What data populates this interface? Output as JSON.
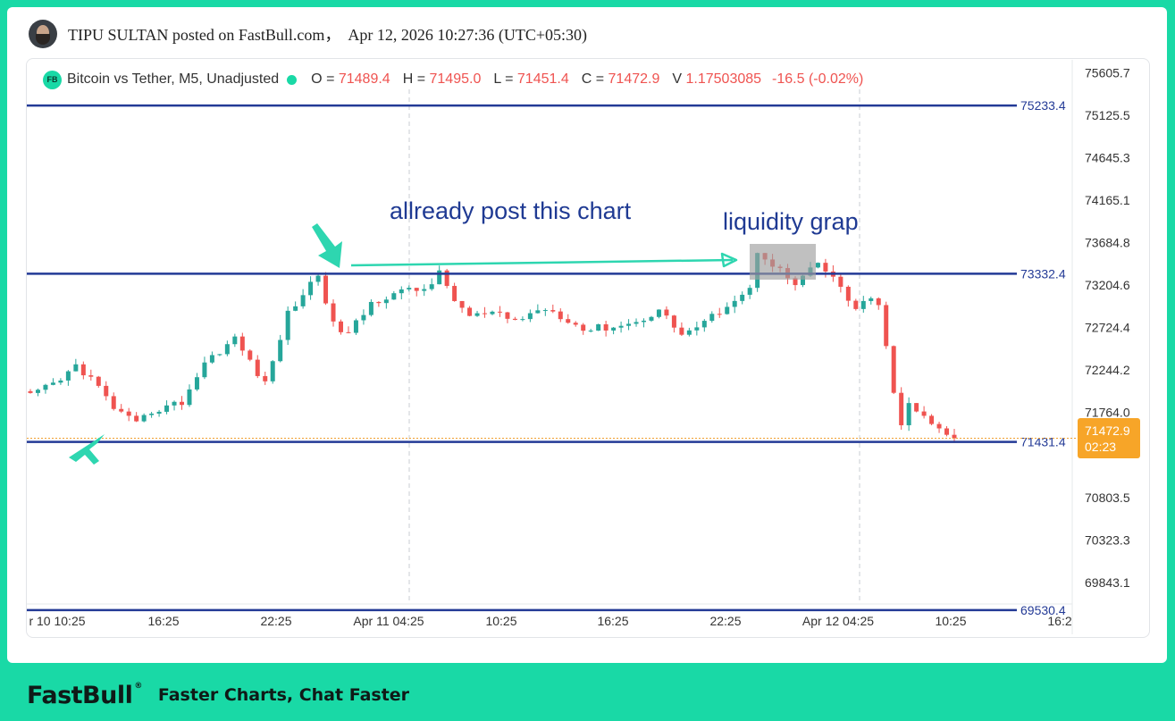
{
  "post": {
    "author": "TIPU SULTAN",
    "header_text": "TIPU SULTAN posted on FastBull.com，  Apr 12, 2026 10:27:36 (UTC+05:30)"
  },
  "chart": {
    "symbol_label": "Bitcoin vs Tether, M5, Unadjusted",
    "legend": {
      "o_key": "O =",
      "o_val": "71489.4",
      "h_key": "H =",
      "h_val": "71495.0",
      "l_key": "L =",
      "l_val": "71451.4",
      "c_key": "C =",
      "c_val": "71472.9",
      "v_key": "V",
      "v_val": "1.17503085",
      "change": "-16.5 (-0.02%)"
    },
    "annotations": {
      "note_1": "allready post this chart",
      "note_2": "liquidity grap"
    },
    "colors": {
      "up": "#26a69a",
      "down": "#ef5350",
      "level_line": "#233a96",
      "annotation_arrow": "#2ed6b0",
      "price_tag": "#f7a528"
    }
  },
  "chart_data": {
    "type": "candlestick",
    "title": "Bitcoin vs Tether, M5, Unadjusted",
    "x_ticks": [
      "r 10 10:25",
      "16:25",
      "22:25",
      "Apr 11 04:25",
      "10:25",
      "16:25",
      "22:25",
      "Apr 12 04:25",
      "10:25",
      "16:2"
    ],
    "y_ticks": [
      "75605.7",
      "75125.5",
      "74645.3",
      "74165.1",
      "73684.8",
      "73204.6",
      "72724.4",
      "72244.2",
      "71764.0",
      "70803.5",
      "70323.3",
      "69843.1"
    ],
    "ylim": [
      69600,
      75720
    ],
    "horizontal_levels": [
      {
        "value": 75233.4,
        "label": "75233.4"
      },
      {
        "value": 73332.4,
        "label": "73332.4"
      },
      {
        "value": 71431.4,
        "label": "71431.4"
      },
      {
        "value": 69530.4,
        "label": "69530.4"
      }
    ],
    "last_price": {
      "value": 71472.9,
      "label": "71472.9",
      "countdown": "02:23"
    },
    "price_path": [
      [
        0,
        71950
      ],
      [
        4,
        72120
      ],
      [
        6,
        72300
      ],
      [
        8,
        72150
      ],
      [
        11,
        71820
      ],
      [
        14,
        71620
      ],
      [
        16,
        71780
      ],
      [
        20,
        71880
      ],
      [
        23,
        72330
      ],
      [
        27,
        72600
      ],
      [
        31,
        72080
      ],
      [
        34,
        72880
      ],
      [
        38,
        73330
      ],
      [
        40,
        72750
      ],
      [
        42,
        72650
      ],
      [
        45,
        73000
      ],
      [
        48,
        73120
      ],
      [
        52,
        73160
      ],
      [
        54,
        73330
      ],
      [
        56,
        73040
      ],
      [
        58,
        72850
      ],
      [
        61,
        72880
      ],
      [
        64,
        72800
      ],
      [
        68,
        72950
      ],
      [
        71,
        72820
      ],
      [
        73,
        72700
      ],
      [
        77,
        72740
      ],
      [
        80,
        72780
      ],
      [
        83,
        72930
      ],
      [
        86,
        72650
      ],
      [
        89,
        72770
      ],
      [
        92,
        72990
      ],
      [
        95,
        73150
      ],
      [
        96,
        73600
      ],
      [
        98,
        73450
      ],
      [
        101,
        73200
      ],
      [
        104,
        73450
      ],
      [
        107,
        73180
      ],
      [
        109,
        72920
      ],
      [
        111,
        73050
      ],
      [
        112,
        72950
      ],
      [
        113,
        72550
      ],
      [
        114,
        71960
      ],
      [
        115,
        71600
      ],
      [
        116,
        71870
      ],
      [
        118,
        71700
      ],
      [
        120,
        71560
      ],
      [
        122,
        71472.9
      ]
    ]
  }
}
